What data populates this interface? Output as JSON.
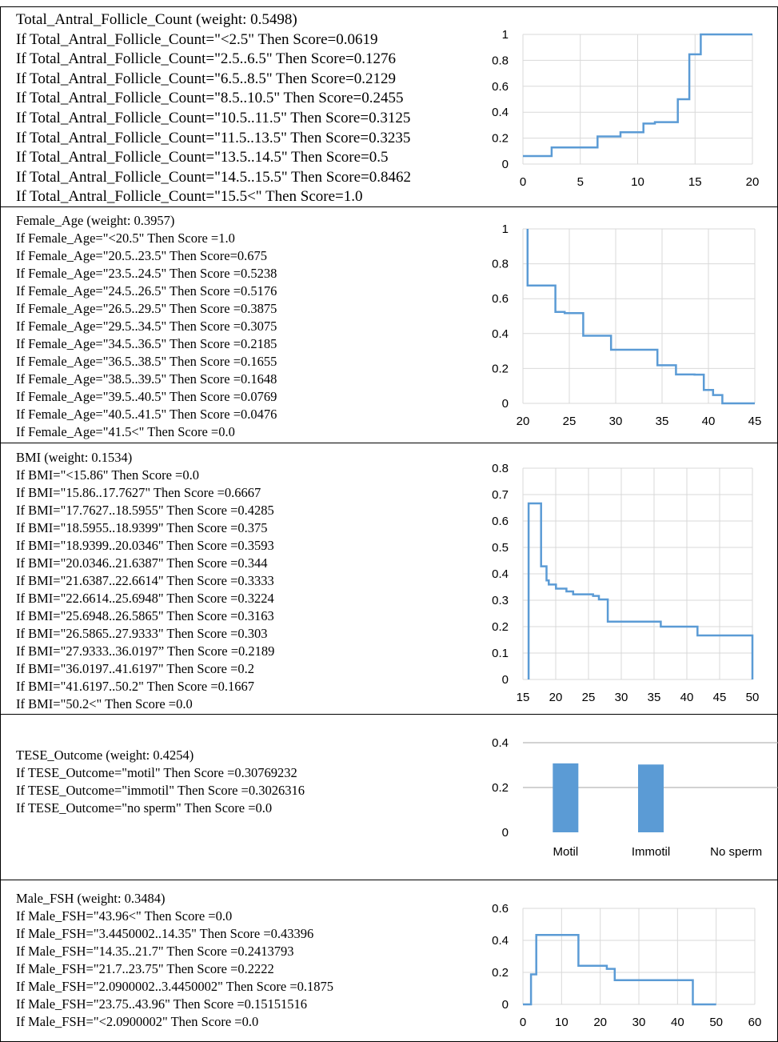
{
  "colors": {
    "series": "#5B9BD5",
    "bar": "#5B9BD5",
    "grid": "#D9D9D9",
    "border": "#000000"
  },
  "panels": [
    {
      "title": "Total_Antral_Follicle_Count (weight: 0.5498)",
      "rules": [
        "If Total_Antral_Follicle_Count=\"<2.5\" Then Score=0.0619",
        "If Total_Antral_Follicle_Count=\"2.5..6.5\" Then Score=0.1276",
        "If Total_Antral_Follicle_Count=\"6.5..8.5\" Then Score=0.2129",
        "If Total_Antral_Follicle_Count=\"8.5..10.5\" Then Score=0.2455",
        "If Total_Antral_Follicle_Count=\"10.5..11.5\" Then Score=0.3125",
        "If Total_Antral_Follicle_Count=\"11.5..13.5\" Then Score=0.3235",
        "If Total_Antral_Follicle_Count=\"13.5..14.5\" Then Score=0.5",
        "If Total_Antral_Follicle_Count=\"14.5..15.5\" Then Score=0.8462",
        "If Total_Antral_Follicle_Count=\"15.5<\" Then Score=1.0"
      ]
    },
    {
      "title": "Female_Age (weight: 0.3957)",
      "rules": [
        "If Female_Age=\"<20.5\" Then Score =1.0",
        "If Female_Age=\"20.5..23.5\" Then Score=0.675",
        "If Female_Age=\"23.5..24.5\" Then Score =0.5238",
        "If Female_Age=\"24.5..26.5\" Then Score =0.5176",
        "If Female_Age=\"26.5..29.5\" Then Score =0.3875",
        "If Female_Age=\"29.5..34.5\" Then Score =0.3075",
        "If Female_Age=\"34.5..36.5\" Then Score =0.2185",
        "If Female_Age=\"36.5..38.5\" Then Score =0.1655",
        "If Female_Age=\"38.5..39.5\" Then Score =0.1648",
        "If Female_Age=\"39.5..40.5\" Then Score =0.0769",
        "If Female_Age=\"40.5..41.5\" Then Score =0.0476",
        "If Female_Age=\"41.5<\" Then Score =0.0"
      ]
    },
    {
      "title": "BMI (weight: 0.1534)",
      "rules": [
        "If BMI=\"<15.86\" Then Score =0.0",
        "If BMI=\"15.86..17.7627\" Then Score =0.6667",
        "If BMI=\"17.7627..18.5955\" Then Score =0.4285",
        "If BMI=\"18.5955..18.9399\" Then Score =0.375",
        "If BMI=\"18.9399..20.0346\" Then Score =0.3593",
        "If BMI=\"20.0346..21.6387\" Then Score =0.344",
        "If BMI=\"21.6387..22.6614\" Then Score =0.3333",
        "If BMI=\"22.6614..25.6948\" Then Score =0.3224",
        "If BMI=\"25.6948..26.5865\" Then Score =0.3163",
        "If BMI=\"26.5865..27.9333\" Then Score =0.303",
        "If BMI=\"27.9333..36.0197” Then Score =0.2189",
        "If BMI=\"36.0197..41.6197\" Then Score =0.2",
        "If BMI=\"41.6197..50.2\" Then Score =0.1667",
        "If BMI=\"50.2<\" Then Score =0.0"
      ]
    },
    {
      "title": "TESE_Outcome (weight: 0.4254)",
      "rules": [
        "If TESE_Outcome=\"motil\" Then Score =0.30769232",
        "If TESE_Outcome=\"immotil\" Then Score =0.3026316",
        "If TESE_Outcome=\"no sperm\" Then Score =0.0"
      ]
    },
    {
      "title": "Male_FSH (weight: 0.3484)",
      "rules": [
        "If Male_FSH=\"43.96<\" Then Score =0.0",
        "If Male_FSH=\"3.4450002..14.35\" Then Score =0.43396",
        "If Male_FSH=\"14.35..21.7\" Then Score =0.2413793",
        "If Male_FSH=\"21.7..23.75\" Then Score =0.2222",
        "If Male_FSH=\"2.0900002..3.4450002\" Then Score =0.1875",
        "If Male_FSH=\"23.75..43.96\" Then Score =0.15151516",
        "If Male_FSH=\"<2.0900002\" Then Score =0.0"
      ]
    }
  ],
  "chart_data": [
    {
      "type": "line",
      "xlim": [
        0,
        20
      ],
      "ylim": [
        0,
        1
      ],
      "xticks": [
        "0",
        "5",
        "10",
        "15",
        "20"
      ],
      "yticks": [
        "0",
        "0.2",
        "0.4",
        "0.6",
        "0.8",
        "1"
      ],
      "x": [
        0,
        2.5,
        2.5,
        6.5,
        6.5,
        8.5,
        8.5,
        10.5,
        10.5,
        11.5,
        11.5,
        13.5,
        13.5,
        14.5,
        14.5,
        15.5,
        15.5,
        20
      ],
      "y": [
        0.0619,
        0.0619,
        0.1276,
        0.1276,
        0.2129,
        0.2129,
        0.2455,
        0.2455,
        0.3125,
        0.3125,
        0.3235,
        0.3235,
        0.5,
        0.5,
        0.8462,
        0.8462,
        1.0,
        1.0
      ]
    },
    {
      "type": "line",
      "xlim": [
        20,
        45
      ],
      "ylim": [
        0,
        1
      ],
      "xticks": [
        "20",
        "25",
        "30",
        "35",
        "40",
        "45"
      ],
      "yticks": [
        "0",
        "0.2",
        "0.4",
        "0.6",
        "0.8",
        "1"
      ],
      "x": [
        20.5,
        20.5,
        23.5,
        23.5,
        24.5,
        24.5,
        26.5,
        26.5,
        29.5,
        29.5,
        34.5,
        34.5,
        36.5,
        36.5,
        38.5,
        38.5,
        39.5,
        39.5,
        40.5,
        40.5,
        41.5,
        41.5,
        45
      ],
      "y": [
        1.0,
        0.675,
        0.675,
        0.5238,
        0.5238,
        0.5176,
        0.5176,
        0.3875,
        0.3875,
        0.3075,
        0.3075,
        0.2185,
        0.2185,
        0.1655,
        0.1655,
        0.1648,
        0.1648,
        0.0769,
        0.0769,
        0.0476,
        0.0476,
        0.0,
        0.0
      ]
    },
    {
      "type": "line",
      "xlim": [
        15,
        50
      ],
      "ylim": [
        0,
        0.8
      ],
      "xticks": [
        "15",
        "20",
        "25",
        "30",
        "35",
        "40",
        "45",
        "50"
      ],
      "yticks": [
        "0",
        "0.1",
        "0.2",
        "0.3",
        "0.4",
        "0.5",
        "0.6",
        "0.7",
        "0.8"
      ],
      "x": [
        15.86,
        15.86,
        17.7627,
        17.7627,
        18.5955,
        18.5955,
        18.9399,
        18.9399,
        20.0346,
        20.0346,
        21.6387,
        21.6387,
        22.6614,
        22.6614,
        25.6948,
        25.6948,
        26.5865,
        26.5865,
        27.9333,
        27.9333,
        36.0197,
        36.0197,
        41.6197,
        41.6197,
        50,
        50
      ],
      "y": [
        0,
        0.6667,
        0.6667,
        0.4285,
        0.4285,
        0.375,
        0.375,
        0.3593,
        0.3593,
        0.344,
        0.344,
        0.3333,
        0.3333,
        0.3224,
        0.3224,
        0.3163,
        0.3163,
        0.303,
        0.303,
        0.2189,
        0.2189,
        0.2,
        0.2,
        0.1667,
        0.1667,
        0
      ]
    },
    {
      "type": "bar",
      "categories": [
        "Motil",
        "Immotil",
        "No sperm"
      ],
      "values": [
        0.30769232,
        0.3026316,
        0.0
      ],
      "ylim": [
        0,
        0.4
      ],
      "yticks": [
        "0",
        "0.2",
        "0.4"
      ]
    },
    {
      "type": "line",
      "xlim": [
        0,
        60
      ],
      "ylim": [
        0,
        0.6
      ],
      "xticks": [
        "0",
        "10",
        "20",
        "30",
        "40",
        "50",
        "60"
      ],
      "yticks": [
        "0",
        "0.2",
        "0.4",
        "0.6"
      ],
      "x": [
        0,
        2.09,
        2.09,
        3.445,
        3.445,
        14.35,
        14.35,
        21.7,
        21.7,
        23.75,
        23.75,
        43.96,
        43.96,
        50
      ],
      "y": [
        0,
        0,
        0.1875,
        0.1875,
        0.43396,
        0.43396,
        0.2413793,
        0.2413793,
        0.2222,
        0.2222,
        0.15151516,
        0.15151516,
        0,
        0
      ]
    }
  ]
}
